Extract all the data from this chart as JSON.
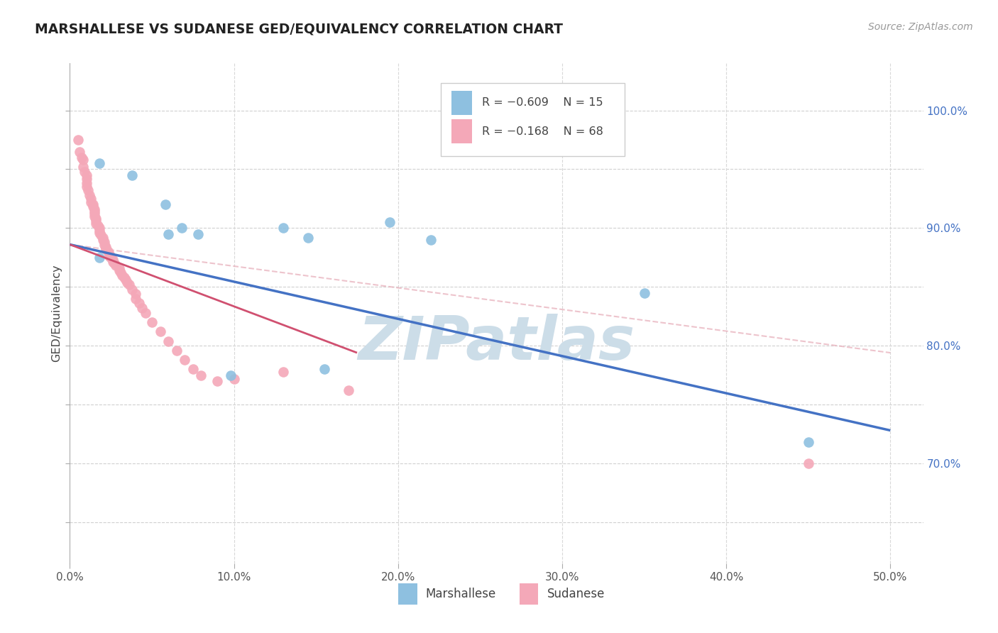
{
  "title": "MARSHALLESE VS SUDANESE GED/EQUIVALENCY CORRELATION CHART",
  "source": "Source: ZipAtlas.com",
  "ylabel": "GED/Equivalency",
  "ytick_positions": [
    0.65,
    0.7,
    0.75,
    0.8,
    0.85,
    0.9,
    0.95,
    1.0
  ],
  "ytick_labels_right": [
    "",
    "70.0%",
    "",
    "80.0%",
    "",
    "90.0%",
    "",
    "100.0%"
  ],
  "xtick_positions": [
    0.0,
    0.1,
    0.2,
    0.3,
    0.4,
    0.5
  ],
  "xtick_labels": [
    "0.0%",
    "10.0%",
    "20.0%",
    "30.0%",
    "40.0%",
    "50.0%"
  ],
  "xlim": [
    0.0,
    0.52
  ],
  "ylim": [
    0.615,
    1.04
  ],
  "legend_r1": "R = −0.609",
  "legend_n1": "N = 15",
  "legend_r2": "R = −0.168",
  "legend_n2": "N = 68",
  "label_marshallese": "Marshallese",
  "label_sudanese": "Sudanese",
  "color_marshallese": "#8ec0e0",
  "color_sudanese": "#f4a8b8",
  "color_line_marshallese": "#4472c4",
  "color_line_sudanese": "#d05070",
  "color_dashed": "#e8b0bc",
  "watermark": "ZIPatlas",
  "watermark_color": "#ccdde8",
  "blue_line_x": [
    0.0,
    0.5
  ],
  "blue_line_y": [
    0.886,
    0.728
  ],
  "pink_line_x": [
    0.0,
    0.175
  ],
  "pink_line_y": [
    0.886,
    0.794
  ],
  "dashed_line_x": [
    0.0,
    0.5
  ],
  "dashed_line_y": [
    0.886,
    0.794
  ],
  "marshallese_x": [
    0.018,
    0.018,
    0.038,
    0.058,
    0.06,
    0.068,
    0.078,
    0.098,
    0.13,
    0.145,
    0.155,
    0.195,
    0.22,
    0.35,
    0.45
  ],
  "marshallese_y": [
    0.875,
    0.955,
    0.945,
    0.92,
    0.895,
    0.9,
    0.895,
    0.775,
    0.9,
    0.892,
    0.78,
    0.905,
    0.89,
    0.845,
    0.718
  ],
  "sudanese_x": [
    0.005,
    0.006,
    0.007,
    0.008,
    0.008,
    0.009,
    0.01,
    0.01,
    0.01,
    0.01,
    0.011,
    0.012,
    0.013,
    0.013,
    0.014,
    0.014,
    0.015,
    0.015,
    0.015,
    0.015,
    0.016,
    0.016,
    0.016,
    0.017,
    0.018,
    0.018,
    0.018,
    0.019,
    0.02,
    0.02,
    0.021,
    0.021,
    0.022,
    0.022,
    0.023,
    0.024,
    0.024,
    0.025,
    0.026,
    0.026,
    0.027,
    0.028,
    0.03,
    0.03,
    0.031,
    0.032,
    0.033,
    0.034,
    0.035,
    0.036,
    0.038,
    0.04,
    0.04,
    0.042,
    0.044,
    0.046,
    0.05,
    0.055,
    0.06,
    0.065,
    0.07,
    0.075,
    0.08,
    0.09,
    0.1,
    0.13,
    0.17,
    0.45
  ],
  "sudanese_y": [
    0.975,
    0.965,
    0.96,
    0.958,
    0.952,
    0.948,
    0.945,
    0.942,
    0.938,
    0.935,
    0.932,
    0.928,
    0.925,
    0.922,
    0.92,
    0.918,
    0.916,
    0.914,
    0.912,
    0.91,
    0.908,
    0.906,
    0.904,
    0.902,
    0.9,
    0.898,
    0.896,
    0.894,
    0.892,
    0.89,
    0.888,
    0.886,
    0.884,
    0.882,
    0.88,
    0.878,
    0.876,
    0.875,
    0.873,
    0.871,
    0.87,
    0.868,
    0.866,
    0.864,
    0.862,
    0.86,
    0.858,
    0.856,
    0.854,
    0.852,
    0.848,
    0.844,
    0.84,
    0.836,
    0.832,
    0.828,
    0.82,
    0.812,
    0.804,
    0.796,
    0.788,
    0.78,
    0.775,
    0.77,
    0.772,
    0.778,
    0.762,
    0.7
  ]
}
